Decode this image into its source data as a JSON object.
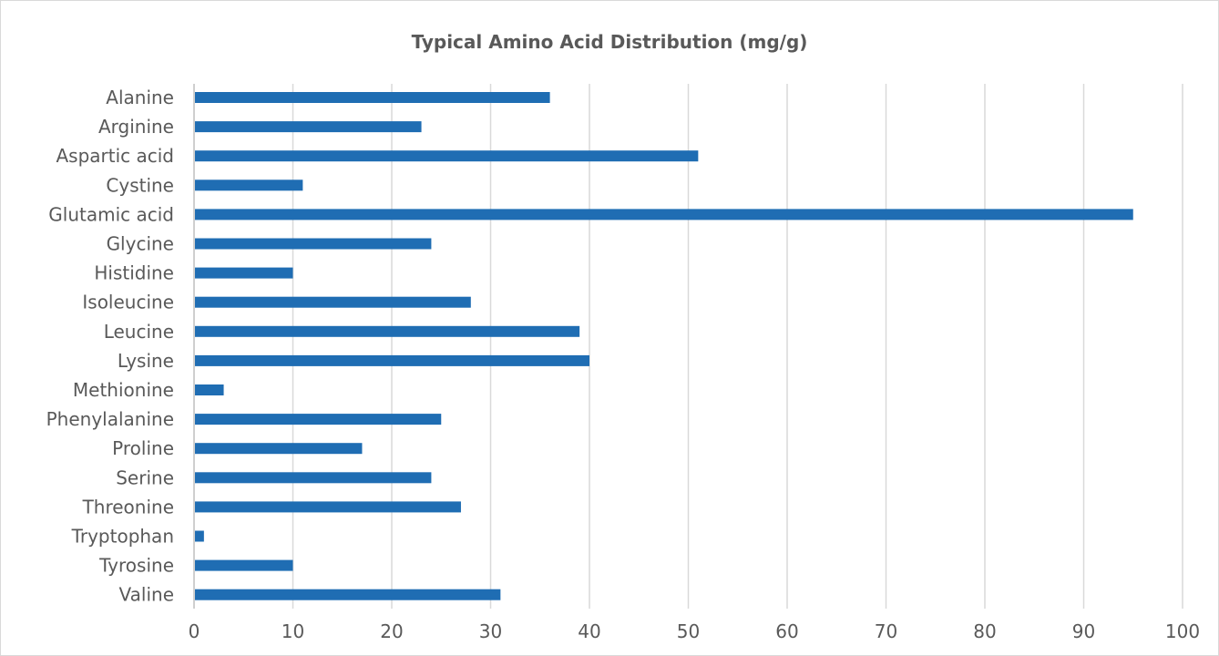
{
  "chart_data": {
    "type": "bar",
    "orientation": "horizontal",
    "title": "Typical Amino Acid Distribution (mg/g)",
    "xlabel": "",
    "ylabel": "",
    "categories": [
      "Alanine",
      "Arginine",
      "Aspartic acid",
      "Cystine",
      "Glutamic acid",
      "Glycine",
      "Histidine",
      "Isoleucine",
      "Leucine",
      "Lysine",
      "Methionine",
      "Phenylalanine",
      "Proline",
      "Serine",
      "Threonine",
      "Tryptophan",
      "Tyrosine",
      "Valine"
    ],
    "values": [
      36,
      23,
      51,
      11,
      95,
      24,
      10,
      28,
      39,
      40,
      3,
      25,
      17,
      24,
      27,
      1,
      10,
      31
    ],
    "xlim": [
      0,
      100
    ],
    "xticks": [
      "0",
      "10",
      "20",
      "30",
      "40",
      "50",
      "60",
      "70",
      "80",
      "90",
      "100"
    ],
    "grid": true,
    "legend": "none",
    "bar_color": "#1f6db3"
  }
}
